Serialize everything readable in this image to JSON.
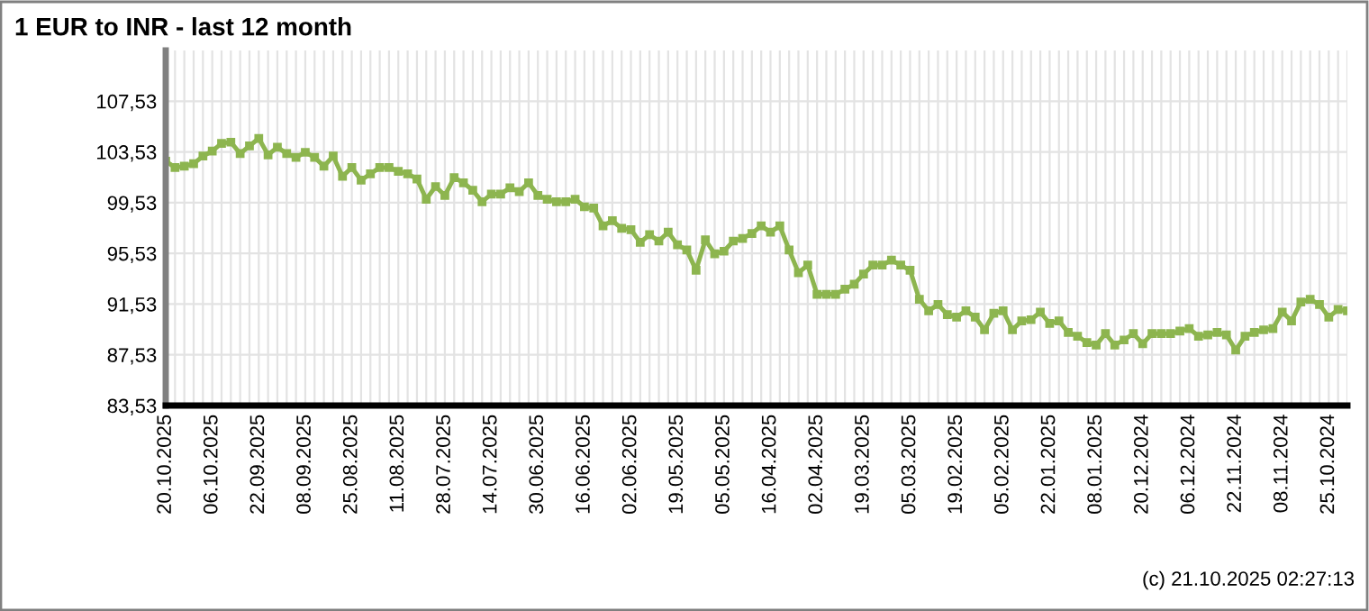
{
  "chart_data": {
    "type": "line",
    "title": "1 EUR to INR - last 12 month",
    "categories": [
      "20.10.2025",
      null,
      null,
      null,
      null,
      "06.10.2025",
      null,
      null,
      null,
      null,
      "22.09.2025",
      null,
      null,
      null,
      null,
      "08.09.2025",
      null,
      null,
      null,
      null,
      "25.08.2025",
      null,
      null,
      null,
      null,
      "11.08.2025",
      null,
      null,
      null,
      null,
      "28.07.2025",
      null,
      null,
      null,
      null,
      "14.07.2025",
      null,
      null,
      null,
      null,
      "30.06.2025",
      null,
      null,
      null,
      null,
      "16.06.2025",
      null,
      null,
      null,
      null,
      "02.06.2025",
      null,
      null,
      null,
      null,
      "19.05.2025",
      null,
      null,
      null,
      null,
      "05.05.2025",
      null,
      null,
      null,
      null,
      "16.04.2025",
      null,
      null,
      null,
      null,
      "02.04.2025",
      null,
      null,
      null,
      null,
      "19.03.2025",
      null,
      null,
      null,
      null,
      "05.03.2025",
      null,
      null,
      null,
      null,
      "19.02.2025",
      null,
      null,
      null,
      null,
      "05.02.2025",
      null,
      null,
      null,
      null,
      "22.01.2025",
      null,
      null,
      null,
      null,
      "08.01.2025",
      null,
      null,
      null,
      null,
      "20.12.2024",
      null,
      null,
      null,
      null,
      "06.12.2024",
      null,
      null,
      null,
      null,
      "22.11.2024",
      null,
      null,
      null,
      null,
      "08.11.2024",
      null,
      null,
      null,
      null,
      "25.10.2024",
      null,
      null
    ],
    "series": [
      {
        "color": "#8db54f",
        "values": [
          102.8,
          102.3,
          102.4,
          102.6,
          103.2,
          103.6,
          104.2,
          104.3,
          103.4,
          104.0,
          104.6,
          103.3,
          103.9,
          103.4,
          103.1,
          103.5,
          103.1,
          102.4,
          103.2,
          101.6,
          102.3,
          101.3,
          101.8,
          102.3,
          102.3,
          102.0,
          101.8,
          101.4,
          99.8,
          100.8,
          100.1,
          101.5,
          101.1,
          100.5,
          99.6,
          100.2,
          100.2,
          100.7,
          100.4,
          101.1,
          100.1,
          99.8,
          99.6,
          99.6,
          99.8,
          99.2,
          99.1,
          97.7,
          98.1,
          97.5,
          97.4,
          96.4,
          97.0,
          96.5,
          97.2,
          96.2,
          95.8,
          94.2,
          96.6,
          95.5,
          95.7,
          96.5,
          96.7,
          97.1,
          97.7,
          97.2,
          97.7,
          95.8,
          94.0,
          94.6,
          92.3,
          92.3,
          92.3,
          92.7,
          93.1,
          93.9,
          94.6,
          94.6,
          95.0,
          94.6,
          94.2,
          91.9,
          91.0,
          91.5,
          90.7,
          90.5,
          91.0,
          90.5,
          89.5,
          90.8,
          91.0,
          89.5,
          90.2,
          90.3,
          90.9,
          90.0,
          90.2,
          89.3,
          89.0,
          88.5,
          88.3,
          89.2,
          88.3,
          88.7,
          89.2,
          88.4,
          89.2,
          89.2,
          89.2,
          89.4,
          89.6,
          89.0,
          89.1,
          89.3,
          89.1,
          87.9,
          89.0,
          89.3,
          89.5,
          89.6,
          90.9,
          90.2,
          91.7,
          91.9,
          91.5,
          90.5,
          91.1,
          91.0
        ]
      }
    ],
    "ylim": [
      83.53,
      111.53
    ],
    "yticks": [
      {
        "value": 83.53,
        "label": "83,53"
      },
      {
        "value": 87.53,
        "label": "87,53"
      },
      {
        "value": 91.53,
        "label": "91,53"
      },
      {
        "value": 95.53,
        "label": "95,53"
      },
      {
        "value": 99.53,
        "label": "99,53"
      },
      {
        "value": 103.53,
        "label": "103,53"
      },
      {
        "value": 107.53,
        "label": "107,53"
      }
    ],
    "grid": true,
    "marker": "square",
    "line_style": "solid",
    "annotations": [
      "(c) 21.10.2025 02:27:13"
    ]
  }
}
